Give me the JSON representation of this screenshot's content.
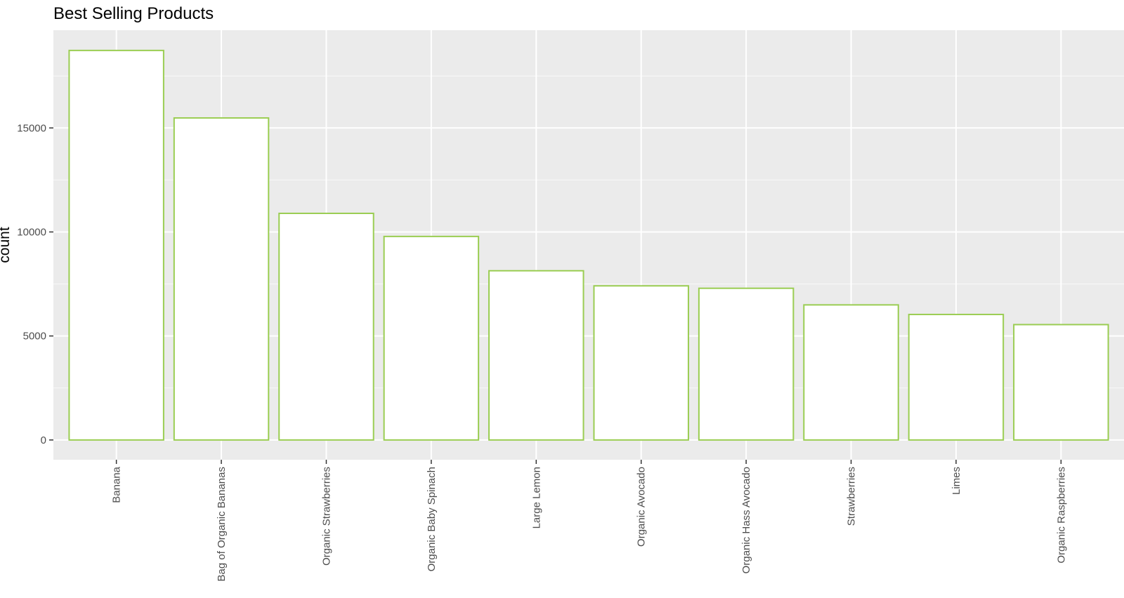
{
  "chart_data": {
    "type": "bar",
    "title": "Best Selling Products",
    "xlabel": "",
    "ylabel": "count",
    "categories": [
      "Banana",
      "Bag of Organic Bananas",
      "Organic Strawberries",
      "Organic Baby Spinach",
      "Large Lemon",
      "Organic Avocado",
      "Organic Hass Avocado",
      "Strawberries",
      "Limes",
      "Organic Raspberries"
    ],
    "values": [
      18726,
      15480,
      10894,
      9784,
      8135,
      7409,
      7293,
      6494,
      6033,
      5546
    ],
    "ylim": [
      -950,
      19700
    ],
    "yticks": [
      0,
      5000,
      10000,
      15000
    ],
    "ytick_labels": [
      "0",
      "5000",
      "10000",
      "15000"
    ],
    "grid": true,
    "legend": "none",
    "colors": {
      "panel_background": "#EBEBEB",
      "grid_major": "#FFFFFF",
      "bar_fill": "#FFFFFF",
      "bar_outline": "#9ACD52",
      "tick_text": "#4D4D4D",
      "tick_mark": "#333333"
    }
  }
}
